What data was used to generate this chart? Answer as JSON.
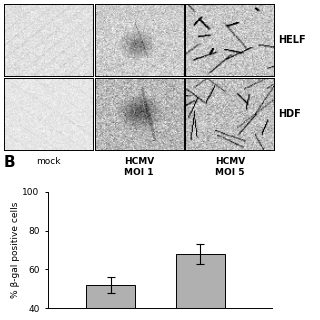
{
  "panel_B_label": "B",
  "bar_values": [
    52,
    68
  ],
  "bar_errors": [
    4,
    5
  ],
  "bar_color": "#b0b0b0",
  "ylabel": "% β-gal positive cells",
  "ylim": [
    40,
    100
  ],
  "yticks": [
    40,
    60,
    80,
    100
  ],
  "background_color": "#ffffff",
  "col_labels": [
    "mock",
    "HCMV\nMOI 1",
    "HCMV\nMOI 5"
  ],
  "row_labels": [
    "HELF",
    "HDF"
  ],
  "fig_width": 3.2,
  "fig_height": 3.2,
  "dpi": 100,
  "img_noise_mock": [
    0.88,
    0.04
  ],
  "img_noise_moi1": [
    0.72,
    0.1
  ],
  "img_noise_moi5": [
    0.75,
    0.1
  ]
}
